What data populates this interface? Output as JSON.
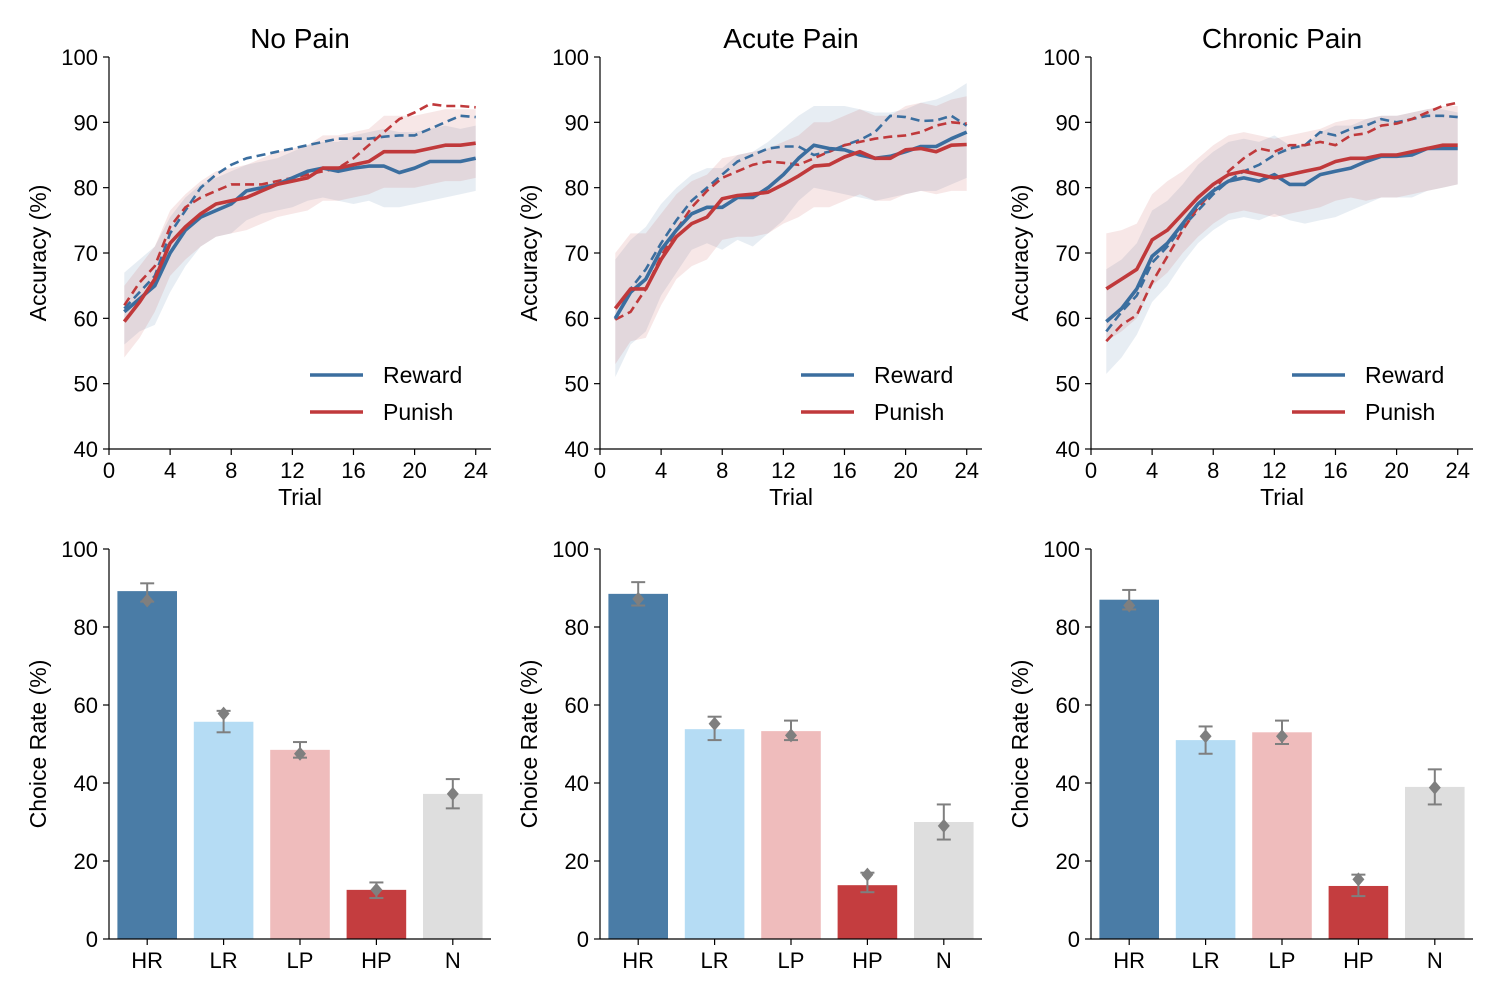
{
  "chart_data": [
    {
      "type": "line",
      "title": "No Pain",
      "xlabel": "Trial",
      "ylabel": "Accuracy (%)",
      "xlim": [
        0,
        25
      ],
      "ylim": [
        40,
        100
      ],
      "xticks": [
        0,
        4,
        8,
        12,
        16,
        20,
        24
      ],
      "yticks": [
        40,
        50,
        60,
        70,
        80,
        90,
        100
      ],
      "legend": {
        "position": "lower-right",
        "entries": [
          "Reward",
          "Punish"
        ]
      },
      "colors": {
        "Reward": "#3b6e9f",
        "Punish": "#c0393b"
      },
      "x": [
        1,
        2,
        3,
        4,
        5,
        6,
        7,
        8,
        9,
        10,
        11,
        12,
        13,
        14,
        15,
        16,
        17,
        18,
        19,
        20,
        21,
        22,
        23,
        24
      ],
      "series": [
        {
          "name": "Reward",
          "style": "solid",
          "values": [
            61,
            63,
            65,
            70,
            73.5,
            75.5,
            76.5,
            77.5,
            79.5,
            80,
            80.5,
            81.5,
            82.5,
            83,
            82.5,
            83,
            83.3,
            83.3,
            82.3,
            83,
            84,
            84,
            84,
            84.5
          ],
          "lower": [
            56,
            58,
            59,
            64,
            68,
            71,
            72.5,
            73,
            75,
            76,
            76.5,
            77,
            78,
            78.5,
            78,
            77.5,
            78,
            77,
            77,
            77.5,
            78,
            78.5,
            79,
            79.5
          ],
          "upper": [
            67,
            69,
            71,
            75.5,
            78.5,
            80.5,
            81.5,
            82.5,
            83.5,
            84,
            84.5,
            85.5,
            86.5,
            87,
            87,
            88,
            88.5,
            89,
            88.5,
            88.5,
            89,
            89.5,
            89,
            89.5
          ]
        },
        {
          "name": "Punish",
          "style": "solid",
          "values": [
            59.5,
            62.5,
            66,
            71.5,
            74,
            76,
            77.5,
            78,
            78.5,
            79.5,
            80.5,
            81,
            81.5,
            83,
            83,
            83.5,
            84,
            85.5,
            85.5,
            85.5,
            86,
            86.5,
            86.5,
            86.8
          ],
          "lower": [
            54,
            57,
            61,
            66.5,
            69,
            71,
            72.5,
            73,
            73.5,
            74.5,
            75.5,
            76,
            76.5,
            78,
            78,
            78.5,
            79,
            80,
            80,
            80,
            80.5,
            81,
            81,
            81.5
          ],
          "upper": [
            65,
            68,
            71,
            76.5,
            79,
            81,
            82.5,
            83,
            83.5,
            84.5,
            85.5,
            86,
            86.5,
            88,
            88,
            88.5,
            89,
            91,
            91,
            91,
            91.5,
            92,
            92,
            92
          ]
        },
        {
          "name": "Reward",
          "style": "dashed",
          "values": [
            61.5,
            64,
            66.5,
            73,
            76.5,
            80,
            82,
            83.5,
            84.5,
            85,
            85.5,
            86,
            86.5,
            87,
            87.5,
            87.5,
            87.5,
            87.8,
            88,
            88,
            89,
            90,
            91,
            90.8
          ]
        },
        {
          "name": "Punish",
          "style": "dashed",
          "values": [
            62,
            65.5,
            68,
            74,
            77,
            78.5,
            79.5,
            80.5,
            80.5,
            80.5,
            81,
            81.5,
            82,
            82.5,
            83,
            84.5,
            86.5,
            88.5,
            90.5,
            91.5,
            92.8,
            92.5,
            92.5,
            92.3
          ]
        }
      ]
    },
    {
      "type": "line",
      "title": "Acute Pain",
      "xlabel": "Trial",
      "ylabel": "Accuracy (%)",
      "xlim": [
        0,
        25
      ],
      "ylim": [
        40,
        100
      ],
      "xticks": [
        0,
        4,
        8,
        12,
        16,
        20,
        24
      ],
      "yticks": [
        40,
        50,
        60,
        70,
        80,
        90,
        100
      ],
      "legend": {
        "position": "lower-right",
        "entries": [
          "Reward",
          "Punish"
        ]
      },
      "colors": {
        "Reward": "#3b6e9f",
        "Punish": "#c0393b"
      },
      "x": [
        1,
        2,
        3,
        4,
        5,
        6,
        7,
        8,
        9,
        10,
        11,
        12,
        13,
        14,
        15,
        16,
        17,
        18,
        19,
        20,
        21,
        22,
        23,
        24
      ],
      "series": [
        {
          "name": "Reward",
          "style": "solid",
          "values": [
            60,
            64,
            66,
            70.5,
            73.5,
            76,
            77,
            77,
            78.5,
            78.5,
            80,
            82,
            84.5,
            86.5,
            86,
            85.8,
            85,
            84.5,
            84.8,
            85.5,
            86.3,
            86.3,
            87.5,
            88.5
          ],
          "lower": [
            51,
            56,
            58,
            63.5,
            67,
            70.5,
            71.5,
            70.5,
            72,
            71,
            73,
            75,
            78,
            80,
            79.5,
            79,
            78.5,
            78,
            78.5,
            79,
            79.5,
            79.5,
            80.5,
            81.5
          ],
          "upper": [
            69,
            72,
            74,
            77.5,
            80,
            82,
            83,
            83,
            85,
            85.5,
            87,
            89,
            91,
            92.5,
            92.5,
            92.5,
            92,
            91.5,
            91.5,
            92,
            93,
            93.5,
            94.5,
            96
          ]
        },
        {
          "name": "Punish",
          "style": "solid",
          "values": [
            61.5,
            64.5,
            64.5,
            69,
            72.5,
            74.5,
            75.5,
            78.3,
            78.8,
            79,
            79.3,
            80.5,
            81.8,
            83.3,
            83.5,
            84.7,
            85.5,
            84.5,
            84.5,
            85.8,
            86,
            85.5,
            86.5,
            86.6
          ],
          "lower": [
            53,
            56.5,
            57,
            62,
            66,
            68,
            69,
            72,
            72.5,
            72.5,
            73,
            74.5,
            75.5,
            77,
            77,
            78,
            79,
            78,
            78,
            79,
            79.5,
            79,
            79.5,
            79.5
          ],
          "upper": [
            70,
            73,
            73,
            76,
            79,
            81,
            82,
            84.5,
            85,
            85.5,
            86,
            87,
            88,
            90,
            90,
            91,
            92,
            91,
            91,
            92.5,
            93,
            92.5,
            93.5,
            94
          ]
        },
        {
          "name": "Reward",
          "style": "dashed",
          "values": [
            59.8,
            64.5,
            67.5,
            71.5,
            75,
            78,
            80,
            82,
            84,
            85,
            86,
            86.3,
            86.3,
            85,
            85.5,
            86.5,
            87.3,
            88.5,
            91,
            90.8,
            90.2,
            90.3,
            91,
            89.5
          ]
        },
        {
          "name": "Punish",
          "style": "dashed",
          "values": [
            59.8,
            61,
            64.5,
            69.5,
            73.5,
            77,
            79.5,
            81.5,
            82.5,
            83.5,
            84,
            83.8,
            83.5,
            84.5,
            85.5,
            86.5,
            87,
            87.5,
            87.8,
            88,
            88.5,
            89.5,
            90,
            89.8
          ]
        }
      ]
    },
    {
      "type": "line",
      "title": "Chronic Pain",
      "xlabel": "Trial",
      "ylabel": "Accuracy (%)",
      "xlim": [
        0,
        25
      ],
      "ylim": [
        40,
        100
      ],
      "xticks": [
        0,
        4,
        8,
        12,
        16,
        20,
        24
      ],
      "yticks": [
        40,
        50,
        60,
        70,
        80,
        90,
        100
      ],
      "legend": {
        "position": "lower-right",
        "entries": [
          "Reward",
          "Punish"
        ]
      },
      "colors": {
        "Reward": "#3b6e9f",
        "Punish": "#c0393b"
      },
      "x": [
        1,
        2,
        3,
        4,
        5,
        6,
        7,
        8,
        9,
        10,
        11,
        12,
        13,
        14,
        15,
        16,
        17,
        18,
        19,
        20,
        21,
        22,
        23,
        24
      ],
      "series": [
        {
          "name": "Reward",
          "style": "solid",
          "values": [
            59.5,
            61.5,
            64.5,
            69.5,
            71.5,
            74.5,
            77.5,
            79.5,
            81,
            81.5,
            81,
            82,
            80.5,
            80.5,
            82,
            82.5,
            83,
            84,
            84.8,
            84.8,
            85,
            86,
            86,
            86
          ],
          "lower": [
            51.5,
            54,
            57.5,
            62.5,
            65,
            68.5,
            71.5,
            73.5,
            75,
            75.5,
            75,
            76,
            75,
            74.5,
            75,
            75.5,
            76.5,
            77.5,
            78.5,
            78.5,
            78.5,
            79.5,
            80,
            80.5
          ],
          "upper": [
            67.5,
            69,
            71.5,
            76.5,
            78,
            80.5,
            83.5,
            85.5,
            87,
            87.5,
            87,
            88,
            86.5,
            86.5,
            88.5,
            89.5,
            89.5,
            90.5,
            91,
            91,
            91.5,
            92,
            92,
            91.5
          ]
        },
        {
          "name": "Punish",
          "style": "solid",
          "values": [
            64.5,
            66,
            67.5,
            72,
            73.5,
            76,
            78.5,
            80.5,
            82,
            82.5,
            82,
            81.5,
            82,
            82.5,
            83,
            84,
            84.5,
            84.5,
            85,
            85,
            85.5,
            86,
            86.5,
            86.5
          ],
          "lower": [
            56.5,
            58,
            60,
            65,
            67,
            70,
            72.5,
            74.5,
            76,
            76.5,
            76,
            75.5,
            76,
            76.5,
            77,
            78,
            78.5,
            78,
            78.5,
            78.5,
            79,
            79.5,
            80,
            80.5
          ],
          "upper": [
            73,
            73.5,
            74.5,
            79,
            81,
            82.5,
            84.5,
            86.5,
            88,
            88.5,
            88,
            87.5,
            88,
            88.5,
            89,
            90,
            90.5,
            90.5,
            91,
            91,
            91.5,
            92,
            92.5,
            92.5
          ]
        },
        {
          "name": "Reward",
          "style": "dashed",
          "values": [
            58,
            61,
            63.5,
            68.5,
            71,
            74,
            76.5,
            79,
            81,
            82.5,
            83.5,
            85,
            86,
            86.5,
            88.5,
            88,
            89,
            89.5,
            90.5,
            90,
            90.5,
            91,
            91,
            90.8
          ]
        },
        {
          "name": "Punish",
          "style": "dashed",
          "values": [
            56.5,
            59,
            60.5,
            65.5,
            69.5,
            73.5,
            77,
            79.5,
            82.5,
            84.5,
            86,
            85.5,
            86.5,
            86.5,
            87,
            86.5,
            88,
            88.3,
            89.5,
            89.8,
            90.5,
            91.5,
            92.5,
            93
          ]
        }
      ]
    },
    {
      "type": "bar",
      "xlabel": "",
      "ylabel": "Choice Rate (%)",
      "ylim": [
        0,
        100
      ],
      "yticks": [
        0,
        20,
        40,
        60,
        80,
        100
      ],
      "categories": [
        "HR",
        "LR",
        "LP",
        "HP",
        "N"
      ],
      "colors": [
        "#4a7ca6",
        "#b5dcf4",
        "#efbcbc",
        "#c43d3f",
        "#dedede"
      ],
      "values": [
        89.2,
        55.7,
        48.5,
        12.6,
        37.2
      ],
      "error_low": [
        86.5,
        53,
        46.5,
        10.5,
        33.5
      ],
      "error_high": [
        91.2,
        58.5,
        50.5,
        14.5,
        41
      ],
      "marker_values": [
        86.8,
        57.8,
        47.5,
        12.6,
        37.2
      ],
      "marker_color": "#7f7f7f"
    },
    {
      "type": "bar",
      "xlabel": "",
      "ylabel": "Choice Rate (%)",
      "ylim": [
        0,
        100
      ],
      "yticks": [
        0,
        20,
        40,
        60,
        80,
        100
      ],
      "categories": [
        "HR",
        "LR",
        "LP",
        "HP",
        "N"
      ],
      "colors": [
        "#4a7ca6",
        "#b5dcf4",
        "#efbcbc",
        "#c43d3f",
        "#dedede"
      ],
      "values": [
        88.5,
        53.8,
        53.3,
        13.8,
        30.0
      ],
      "error_low": [
        85.5,
        51,
        51,
        12,
        25.5
      ],
      "error_high": [
        91.5,
        57,
        56,
        17,
        34.5
      ],
      "marker_values": [
        87.2,
        55.2,
        52.2,
        16.5,
        29.0
      ],
      "marker_color": "#7f7f7f"
    },
    {
      "type": "bar",
      "xlabel": "",
      "ylabel": "Choice Rate (%)",
      "ylim": [
        0,
        100
      ],
      "yticks": [
        0,
        20,
        40,
        60,
        80,
        100
      ],
      "categories": [
        "HR",
        "LR",
        "LP",
        "HP",
        "N"
      ],
      "colors": [
        "#4a7ca6",
        "#b5dcf4",
        "#efbcbc",
        "#c43d3f",
        "#dedede"
      ],
      "values": [
        87.0,
        51.0,
        53.0,
        13.6,
        39.0
      ],
      "error_low": [
        84.5,
        47.5,
        50,
        11,
        34.5
      ],
      "error_high": [
        89.5,
        54.5,
        56,
        16.5,
        43.5
      ],
      "marker_values": [
        85.5,
        52.0,
        52.0,
        15.3,
        38.8
      ],
      "marker_color": "#7f7f7f"
    }
  ]
}
